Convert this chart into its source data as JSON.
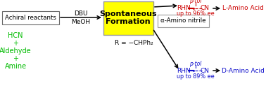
{
  "bg_color": "#ffffff",
  "achiral_box_text": "Achiral reactants",
  "reactants_lines": [
    "HCN",
    "+",
    "Aldehyde",
    "+",
    "Amine"
  ],
  "reactants_color": "#00bb00",
  "dbu_text": "DBU",
  "meoh_text": "MeOH",
  "center_box_text": "Spontaneous\nFormation",
  "center_box_facecolor": "#ffff00",
  "center_box_edgecolor": "#999999",
  "alpha_nitrile_text": "α-Amino nitrile",
  "alpha_nitrile_edgecolor": "#999999",
  "l_amino_text": "L-Amino Acid",
  "d_amino_text": "D-Amino Acid",
  "color_l": "#cc0000",
  "color_d": "#1111cc",
  "l_ee_text": "up to 96% ee",
  "d_ee_text": "up to 89% ee",
  "r_text": "R = −CHPh₂",
  "arrow_color": "#000000",
  "box_edge_color": "#666666"
}
